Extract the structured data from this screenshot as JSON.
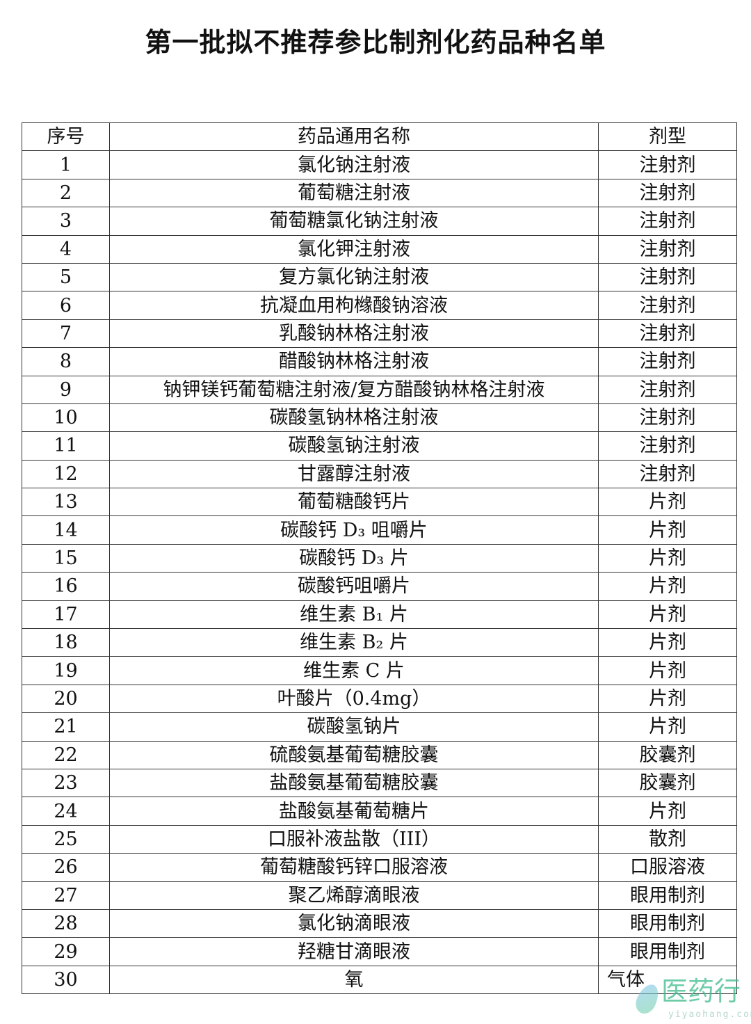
{
  "title": "第一批拟不推荐参比制剂化药品种名单",
  "table": {
    "headers": [
      "序号",
      "药品通用名称",
      "剂型"
    ],
    "rows": [
      [
        "1",
        "氯化钠注射液",
        "注射剂"
      ],
      [
        "2",
        "葡萄糖注射液",
        "注射剂"
      ],
      [
        "3",
        "葡萄糖氯化钠注射液",
        "注射剂"
      ],
      [
        "4",
        "氯化钾注射液",
        "注射剂"
      ],
      [
        "5",
        "复方氯化钠注射液",
        "注射剂"
      ],
      [
        "6",
        "抗凝血用枸橼酸钠溶液",
        "注射剂"
      ],
      [
        "7",
        "乳酸钠林格注射液",
        "注射剂"
      ],
      [
        "8",
        "醋酸钠林格注射液",
        "注射剂"
      ],
      [
        "9",
        "钠钾镁钙葡萄糖注射液/复方醋酸钠林格注射液",
        "注射剂"
      ],
      [
        "10",
        "碳酸氢钠林格注射液",
        "注射剂"
      ],
      [
        "11",
        "碳酸氢钠注射液",
        "注射剂"
      ],
      [
        "12",
        "甘露醇注射液",
        "注射剂"
      ],
      [
        "13",
        "葡萄糖酸钙片",
        "片剂"
      ],
      [
        "14",
        "碳酸钙 D₃ 咀嚼片",
        "片剂"
      ],
      [
        "15",
        "碳酸钙 D₃ 片",
        "片剂"
      ],
      [
        "16",
        "碳酸钙咀嚼片",
        "片剂"
      ],
      [
        "17",
        "维生素 B₁ 片",
        "片剂"
      ],
      [
        "18",
        "维生素 B₂ 片",
        "片剂"
      ],
      [
        "19",
        "维生素 C 片",
        "片剂"
      ],
      [
        "20",
        "叶酸片（0.4mg）",
        "片剂"
      ],
      [
        "21",
        "碳酸氢钠片",
        "片剂"
      ],
      [
        "22",
        "硫酸氨基葡萄糖胶囊",
        "胶囊剂"
      ],
      [
        "23",
        "盐酸氨基葡萄糖胶囊",
        "胶囊剂"
      ],
      [
        "24",
        "盐酸氨基葡萄糖片",
        "片剂"
      ],
      [
        "25",
        "口服补液盐散（III）",
        "散剂"
      ],
      [
        "26",
        "葡萄糖酸钙锌口服溶液",
        "口服溶液"
      ],
      [
        "27",
        "聚乙烯醇滴眼液",
        "眼用制剂"
      ],
      [
        "28",
        "氯化钠滴眼液",
        "眼用制剂"
      ],
      [
        "29",
        "羟糖甘滴眼液",
        "眼用制剂"
      ],
      [
        "30",
        "氧",
        "气体"
      ]
    ]
  },
  "watermark": {
    "brand": "医药行",
    "url": "yiyaohang.com"
  }
}
